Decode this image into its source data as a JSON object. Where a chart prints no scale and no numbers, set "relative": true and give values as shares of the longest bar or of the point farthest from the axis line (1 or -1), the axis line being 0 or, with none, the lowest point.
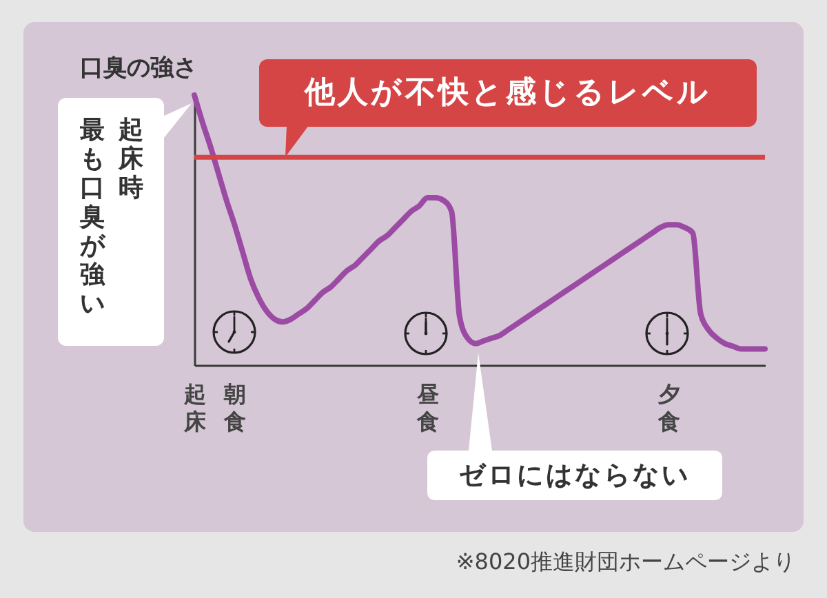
{
  "chart_data": {
    "type": "line",
    "relative": true,
    "ylabel": "口臭の強さ",
    "categories": [
      "起床",
      null,
      null,
      null,
      null,
      "朝食",
      null,
      null,
      null,
      null,
      null,
      null,
      null,
      null,
      null,
      null,
      null,
      null,
      null,
      null,
      null,
      null,
      null,
      null,
      null,
      null,
      null,
      null,
      null,
      "昼食",
      null,
      null,
      null,
      null,
      null,
      null,
      null,
      null,
      null,
      null,
      null,
      null,
      null,
      null,
      null,
      null,
      null,
      null,
      null,
      null,
      null,
      null,
      null,
      null,
      null,
      null,
      null,
      null,
      null,
      "夕食",
      null,
      null,
      null,
      null,
      null,
      null,
      null,
      null,
      null,
      null,
      null,
      null
    ],
    "series": [
      {
        "color": "#9b4ba3",
        "values": [
          1.0,
          0.9,
          0.81,
          0.71,
          0.61,
          0.52,
          0.42,
          0.32,
          0.25,
          0.2,
          0.17,
          0.16,
          0.17,
          0.19,
          0.21,
          0.24,
          0.27,
          0.29,
          0.32,
          0.35,
          0.37,
          0.4,
          0.43,
          0.46,
          0.48,
          0.51,
          0.54,
          0.57,
          0.59,
          0.62,
          0.62,
          0.61,
          0.57,
          0.18,
          0.1,
          0.08,
          0.09,
          0.1,
          0.11,
          0.13,
          0.15,
          0.17,
          0.19,
          0.21,
          0.23,
          0.25,
          0.27,
          0.29,
          0.31,
          0.33,
          0.35,
          0.37,
          0.39,
          0.41,
          0.43,
          0.45,
          0.47,
          0.49,
          0.51,
          0.52,
          0.52,
          0.51,
          0.49,
          0.19,
          0.13,
          0.1,
          0.08,
          0.07,
          0.06,
          0.06,
          0.06,
          0.06
        ]
      }
    ],
    "ref_lines": [
      {
        "axis": "y",
        "value": 0.77,
        "label": "他人が不快と感じるレベル",
        "color": "#d64545"
      }
    ],
    "annotations": [
      "起床時",
      "最も口臭が強い",
      "ゼロにはならない",
      "※8020推進財団ホームページより"
    ]
  }
}
